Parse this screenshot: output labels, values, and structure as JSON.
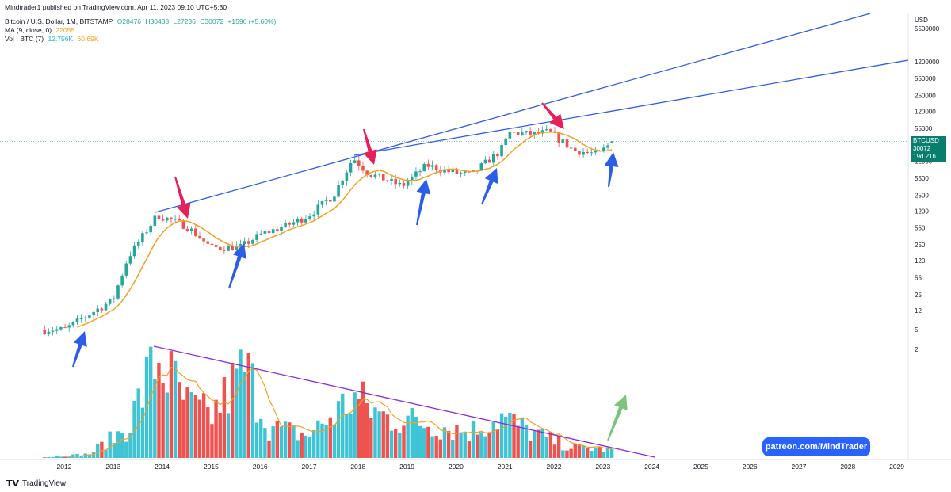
{
  "header": {
    "publisher": "Mindtrader1 published on TradingView.com, Apr 11, 2023 09:10 UTC+5:30",
    "symbol": "Bitcoin / U.S. Dollar, 1M, BITSTAMP",
    "open": "O28476",
    "high": "H30438",
    "low": "L27236",
    "close": "C30072",
    "change": "+1596 (+5.60%)",
    "ma_label": "MA (9, close, 0)",
    "ma_value": "22055",
    "vol_label": "Vol · BTC (7)",
    "vol_value1": "12.756K",
    "vol_value2": "60.69K"
  },
  "price_tag": {
    "symbol": "BTCUSD",
    "price": "30072",
    "countdown": "19d 21h"
  },
  "patreon": "patreon.com/MindTrader",
  "brand": "TradingView",
  "chart_data": {
    "type": "candlestick",
    "scale": "log",
    "currency": "USD",
    "y_ticks": [
      2,
      5,
      12,
      25,
      55,
      120,
      250,
      550,
      1200,
      2500,
      5500,
      12000,
      55000,
      120000,
      250000,
      550000,
      1200000,
      5500000
    ],
    "x_ticks": [
      "2012",
      "2013",
      "2014",
      "2015",
      "2016",
      "2017",
      "2018",
      "2019",
      "2020",
      "2021",
      "2022",
      "2023",
      "2024",
      "2025",
      "2026",
      "2027",
      "2028",
      "2029"
    ],
    "candles_yearly_closes": {
      "2011.6": 5,
      "2012.0": 5,
      "2012.5": 10,
      "2013.0": 20,
      "2013.3": 140,
      "2013.9": 1000,
      "2014.5": 600,
      "2015.0": 220,
      "2015.6": 230,
      "2016.0": 400,
      "2016.6": 650,
      "2017.0": 1000,
      "2017.5": 2500,
      "2017.9": 14000,
      "2018.2": 7000,
      "2018.9": 3800,
      "2019.4": 10000,
      "2019.9": 7200,
      "2020.3": 6500,
      "2020.9": 19000,
      "2021.1": 45000,
      "2021.6": 42000,
      "2021.9": 47000,
      "2022.4": 20000,
      "2022.9": 16500,
      "2023.2": 30072
    },
    "ma_last": 22055,
    "volume_last": "12.756K",
    "volume_ma_last": "60.69K",
    "annotations": [
      "resistance trendlines from 2013 top",
      "volume downtrend line",
      "red arrows at cycle tops",
      "blue arrows at bottoms",
      "green arrow up"
    ]
  }
}
